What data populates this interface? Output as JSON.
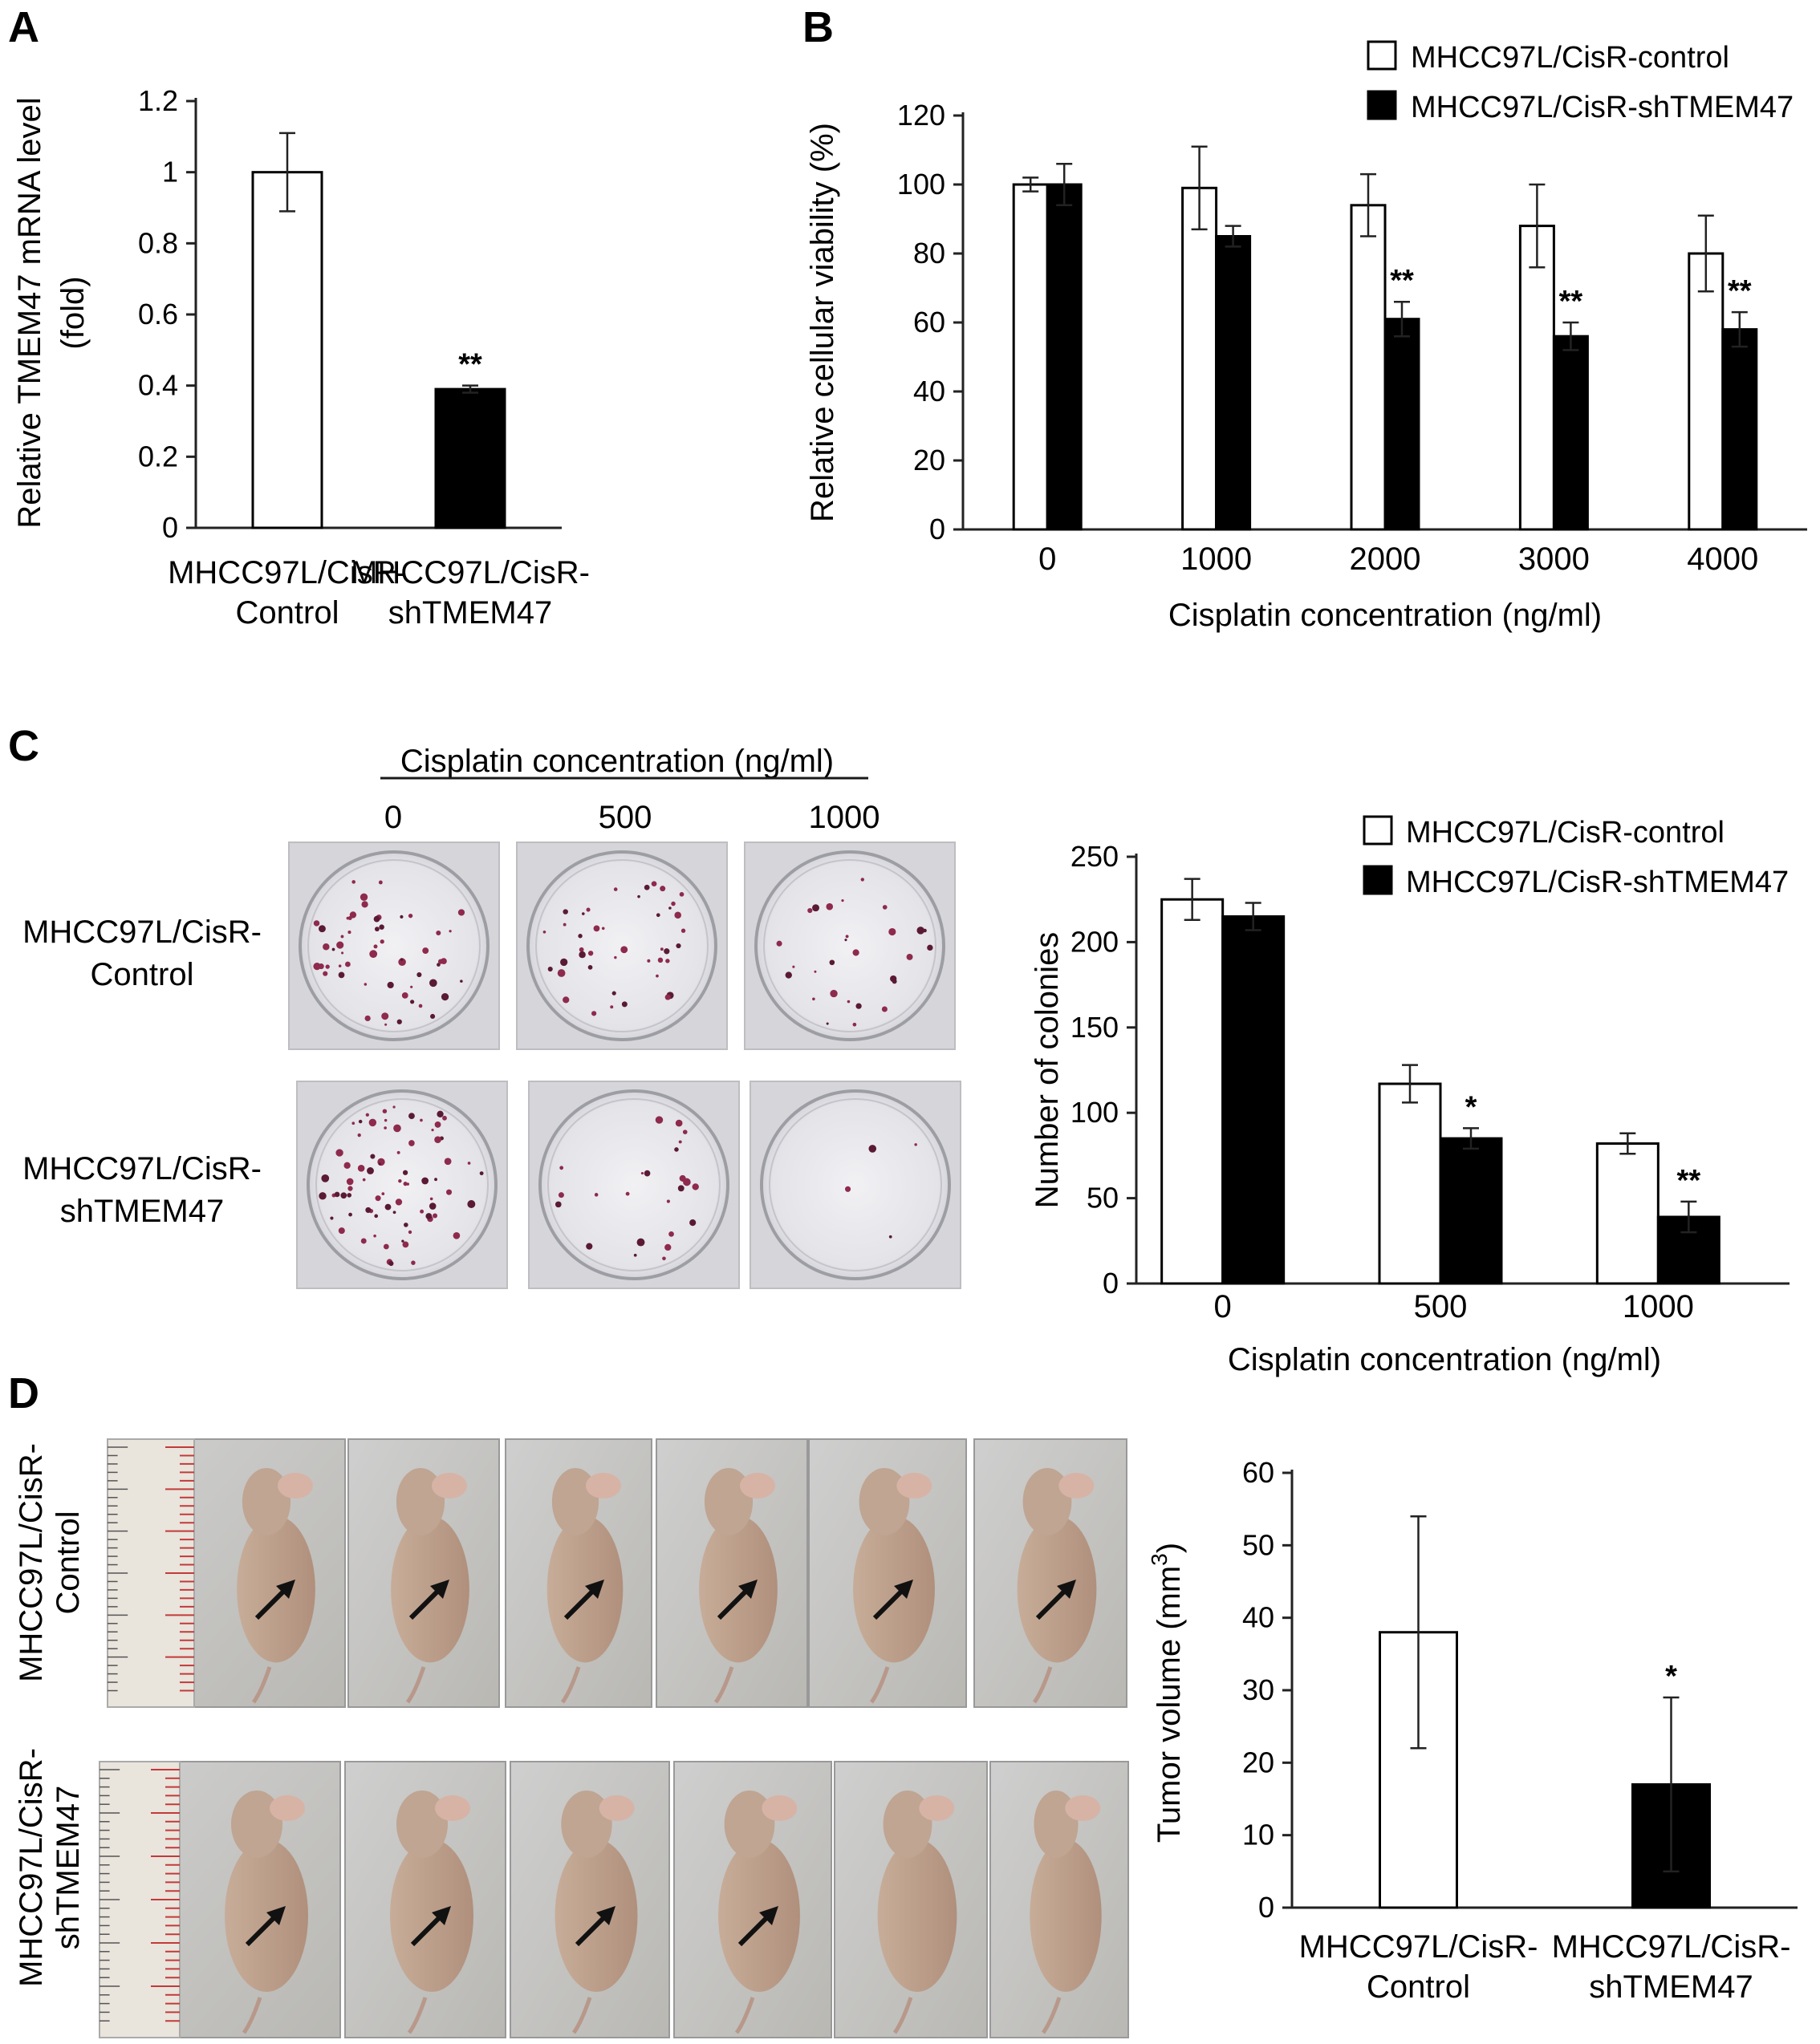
{
  "panels": [
    {
      "letter": "A"
    },
    {
      "letter": "B"
    },
    {
      "letter": "C"
    },
    {
      "letter": "D"
    }
  ],
  "legend": {
    "control": "MHCC97L/CisR-control",
    "knockdown": "MHCC97L/CisR-shTMEM47"
  },
  "panel_c_images": {
    "header": "Cisplatin concentration (ng/ml)",
    "concentrations": [
      "0",
      "500",
      "1000"
    ],
    "row_labels": [
      [
        "MHCC97L/CisR-",
        "Control"
      ],
      [
        "MHCC97L/CisR-",
        "shTMEM47"
      ]
    ]
  },
  "panel_d_images": {
    "row_labels": [
      [
        "MHCC97L/CisR-",
        "Control"
      ],
      [
        "MHCC97L/CisR-",
        "shTMEM47"
      ]
    ],
    "mice_per_row": 6
  },
  "chart_data": [
    {
      "id": "A",
      "type": "bar",
      "categories": [
        [
          "MHCC97L/CisR-",
          "Control"
        ],
        [
          "MHCC97L/CisR-",
          "shTMEM47"
        ]
      ],
      "values": [
        1.0,
        0.39
      ],
      "errors": [
        0.11,
        0.01
      ],
      "fills": [
        "#ffffff",
        "#000000"
      ],
      "annotations": [
        "",
        "**"
      ],
      "ylabel": [
        "Relative TMEM47 mRNA level",
        "(fold)"
      ],
      "ylim": [
        0,
        1.2
      ],
      "yticks": [
        0,
        0.2,
        0.4,
        0.6,
        0.8,
        1,
        1.2
      ],
      "ytick_labels": [
        "0",
        "0.2",
        "0.4",
        "0.6",
        "0.8",
        "1",
        "1.2"
      ]
    },
    {
      "id": "B",
      "type": "bar",
      "categories": [
        "0",
        "1000",
        "2000",
        "3000",
        "4000"
      ],
      "series": [
        {
          "name": "MHCC97L/CisR-control",
          "values": [
            100,
            99,
            94,
            88,
            80
          ],
          "errors": [
            2,
            12,
            9,
            12,
            11
          ],
          "fill": "#ffffff",
          "annotations": [
            "",
            "",
            "",
            "",
            ""
          ]
        },
        {
          "name": "MHCC97L/CisR-shTMEM47",
          "values": [
            100,
            85,
            61,
            56,
            58
          ],
          "errors": [
            6,
            3,
            5,
            4,
            5
          ],
          "fill": "#000000",
          "annotations": [
            "",
            "",
            "**",
            "**",
            "**"
          ]
        }
      ],
      "xlabel": "Cisplatin concentration (ng/ml)",
      "ylabel": "Relative cellular viability (%)",
      "ylim": [
        0,
        120
      ],
      "yticks": [
        0,
        20,
        40,
        60,
        80,
        100,
        120
      ],
      "legend_position": "top-right"
    },
    {
      "id": "C",
      "type": "bar",
      "categories": [
        "0",
        "500",
        "1000"
      ],
      "series": [
        {
          "name": "MHCC97L/CisR-control",
          "values": [
            225,
            117,
            82
          ],
          "errors": [
            12,
            11,
            6
          ],
          "fill": "#ffffff",
          "annotations": [
            "",
            "",
            ""
          ]
        },
        {
          "name": "MHCC97L/CisR-shTMEM47",
          "values": [
            215,
            85,
            39
          ],
          "errors": [
            8,
            6,
            9
          ],
          "fill": "#000000",
          "annotations": [
            "",
            "*",
            "**"
          ]
        }
      ],
      "xlabel": "Cisplatin concentration (ng/ml)",
      "ylabel": "Number of colonies",
      "ylim": [
        0,
        250
      ],
      "yticks": [
        0,
        50,
        100,
        150,
        200,
        250
      ],
      "legend_position": "top-right"
    },
    {
      "id": "D",
      "type": "bar",
      "categories": [
        [
          "MHCC97L/CisR-",
          "Control"
        ],
        [
          "MHCC97L/CisR-",
          "shTMEM47"
        ]
      ],
      "values": [
        38,
        17
      ],
      "errors": [
        16,
        12
      ],
      "fills": [
        "#ffffff",
        "#000000"
      ],
      "annotations": [
        "",
        "*"
      ],
      "ylabel_main": "Tumor volume (mm",
      "ylabel_sup": "3",
      "ylabel_end": ")",
      "ylim": [
        0,
        60
      ],
      "yticks": [
        0,
        10,
        20,
        30,
        40,
        50,
        60
      ]
    }
  ]
}
